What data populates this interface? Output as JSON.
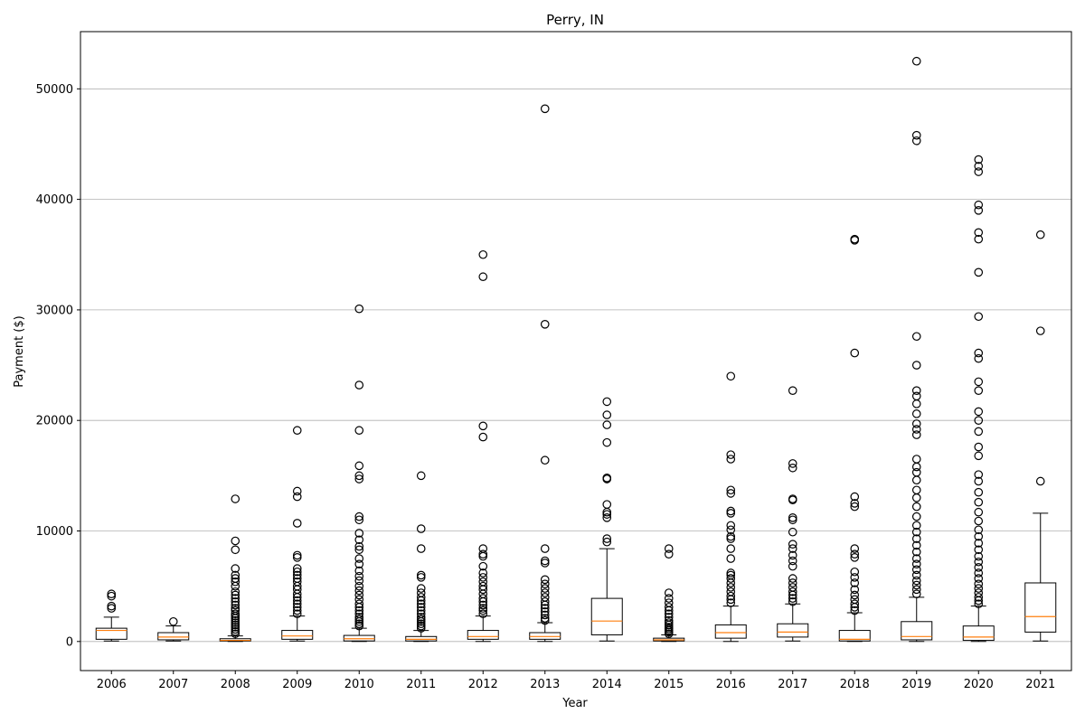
{
  "chart_data": {
    "type": "boxplot",
    "title": "Perry, IN",
    "xlabel": "Year",
    "ylabel": "Payment ($)",
    "ylim": [
      -2700,
      55100
    ],
    "yticks": [
      0,
      10000,
      20000,
      30000,
      40000,
      50000
    ],
    "grid": "horizontal",
    "colors": {
      "box": "#000000",
      "median": "#ff7f0e",
      "grid": "#b0b0b0"
    },
    "categories": [
      "2006",
      "2007",
      "2008",
      "2009",
      "2010",
      "2011",
      "2012",
      "2013",
      "2014",
      "2015",
      "2016",
      "2017",
      "2018",
      "2019",
      "2020",
      "2021"
    ],
    "boxes": [
      {
        "year": "2006",
        "whisker_low": 50,
        "q1": 200,
        "median": 1000,
        "q3": 1200,
        "whisker_high": 2200,
        "outliers": [
          3000,
          3200,
          4100,
          4300
        ]
      },
      {
        "year": "2007",
        "whisker_low": 50,
        "q1": 150,
        "median": 400,
        "q3": 800,
        "whisker_high": 1400,
        "outliers": [
          1800
        ]
      },
      {
        "year": "2008",
        "whisker_low": 0,
        "q1": 50,
        "median": 100,
        "q3": 250,
        "whisker_high": 500,
        "outliers": [
          700,
          900,
          1100,
          1300,
          1500,
          1700,
          1900,
          2100,
          2300,
          2500,
          2800,
          3000,
          3300,
          3600,
          3900,
          4200,
          4500,
          5000,
          5400,
          5700,
          6000,
          6600,
          8300,
          9100,
          12900
        ]
      },
      {
        "year": "2009",
        "whisker_low": 50,
        "q1": 200,
        "median": 500,
        "q3": 1000,
        "whisker_high": 2300,
        "outliers": [
          2500,
          2800,
          3100,
          3400,
          3700,
          4000,
          4300,
          4700,
          5000,
          5400,
          5700,
          6000,
          6300,
          6600,
          7600,
          7800,
          10700,
          13100,
          13600,
          19100
        ]
      },
      {
        "year": "2010",
        "whisker_low": 0,
        "q1": 50,
        "median": 250,
        "q3": 550,
        "whisker_high": 1200,
        "outliers": [
          1400,
          1600,
          1800,
          2000,
          2200,
          2500,
          2800,
          3100,
          3400,
          3800,
          4200,
          4600,
          5000,
          5500,
          5900,
          6400,
          7000,
          7500,
          8300,
          8600,
          9200,
          9800,
          11000,
          11300,
          14700,
          15000,
          15900,
          19100,
          23200,
          30100
        ]
      },
      {
        "year": "2011",
        "whisker_low": 0,
        "q1": 50,
        "median": 200,
        "q3": 450,
        "whisker_high": 1000,
        "outliers": [
          1200,
          1400,
          1600,
          1800,
          2000,
          2200,
          2500,
          2800,
          3100,
          3400,
          3700,
          4000,
          4400,
          4800,
          5800,
          6000,
          8400,
          10200,
          15000
        ]
      },
      {
        "year": "2012",
        "whisker_low": 0,
        "q1": 200,
        "median": 450,
        "q3": 1000,
        "whisker_high": 2300,
        "outliers": [
          2500,
          2800,
          3000,
          3300,
          3600,
          3900,
          4300,
          4700,
          5000,
          5400,
          5800,
          6200,
          6800,
          7700,
          7900,
          8400,
          18500,
          19500,
          33000,
          35000
        ]
      },
      {
        "year": "2013",
        "whisker_low": 0,
        "q1": 200,
        "median": 450,
        "q3": 800,
        "whisker_high": 1700,
        "outliers": [
          1900,
          2100,
          2400,
          2700,
          3000,
          3300,
          3600,
          4000,
          4400,
          4800,
          5200,
          5600,
          7100,
          7300,
          8400,
          16400,
          28700,
          48200
        ]
      },
      {
        "year": "2014",
        "whisker_low": 50,
        "q1": 600,
        "median": 1850,
        "q3": 3900,
        "whisker_high": 8400,
        "outliers": [
          9000,
          9300,
          11200,
          11500,
          11700,
          12400,
          14700,
          14800,
          18000,
          19600,
          20500,
          21700
        ]
      },
      {
        "year": "2015",
        "whisker_low": 0,
        "q1": 50,
        "median": 150,
        "q3": 300,
        "whisker_high": 600,
        "outliers": [
          700,
          850,
          1000,
          1150,
          1300,
          1500,
          1700,
          1900,
          2200,
          2500,
          2800,
          3100,
          3500,
          3900,
          4400,
          7900,
          8400
        ]
      },
      {
        "year": "2016",
        "whisker_low": 0,
        "q1": 300,
        "median": 800,
        "q3": 1500,
        "whisker_high": 3200,
        "outliers": [
          3500,
          3800,
          4100,
          4500,
          4900,
          5300,
          5700,
          6000,
          6200,
          7500,
          8400,
          9300,
          9500,
          10100,
          10500,
          11600,
          11800,
          13400,
          13700,
          16500,
          16900,
          24000
        ]
      },
      {
        "year": "2017",
        "whisker_low": 50,
        "q1": 400,
        "median": 850,
        "q3": 1600,
        "whisker_high": 3400,
        "outliers": [
          3600,
          3900,
          4200,
          4500,
          4900,
          5300,
          5700,
          6800,
          7300,
          7800,
          8400,
          8800,
          9900,
          11000,
          11200,
          12800,
          12900,
          15700,
          16100,
          22700
        ]
      },
      {
        "year": "2018",
        "whisker_low": 0,
        "q1": 50,
        "median": 200,
        "q3": 1000,
        "whisker_high": 2600,
        "outliers": [
          2800,
          3100,
          3400,
          3800,
          4200,
          4700,
          5300,
          5800,
          6300,
          7600,
          7900,
          8400,
          12200,
          12500,
          13100,
          26100,
          36300,
          36400
        ]
      },
      {
        "year": "2019",
        "whisker_low": 0,
        "q1": 150,
        "median": 450,
        "q3": 1800,
        "whisker_high": 4000,
        "outliers": [
          4300,
          4700,
          5100,
          5500,
          6000,
          6500,
          7000,
          7500,
          8100,
          8700,
          9300,
          9900,
          10500,
          11300,
          12200,
          13000,
          13700,
          14600,
          15300,
          15800,
          16500,
          18700,
          19200,
          19700,
          20600,
          21500,
          22200,
          22700,
          25000,
          27600,
          45300,
          45800,
          52500
        ]
      },
      {
        "year": "2020",
        "whisker_low": 0,
        "q1": 100,
        "median": 400,
        "q3": 1400,
        "whisker_high": 3200,
        "outliers": [
          3400,
          3700,
          4000,
          4400,
          4800,
          5200,
          5700,
          6200,
          6700,
          7200,
          7700,
          8300,
          8900,
          9500,
          10100,
          10900,
          11700,
          12600,
          13500,
          14500,
          15100,
          16800,
          17600,
          19000,
          20000,
          20800,
          22700,
          23500,
          25600,
          26100,
          29400,
          33400,
          36400,
          37000,
          39000,
          39500,
          42500,
          43000,
          43600
        ]
      },
      {
        "year": "2021",
        "whisker_low": 50,
        "q1": 850,
        "median": 2250,
        "q3": 5300,
        "whisker_high": 11600,
        "outliers": [
          14500,
          28100,
          36800
        ]
      }
    ]
  }
}
